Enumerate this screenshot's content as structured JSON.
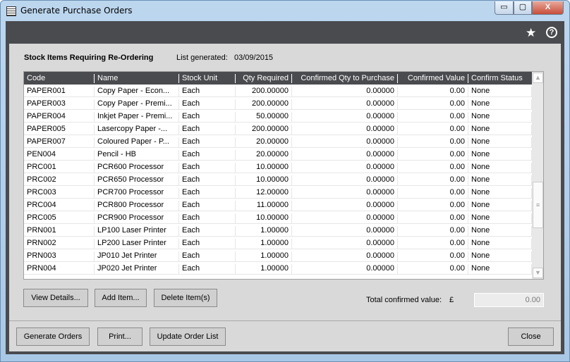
{
  "window": {
    "title": "Generate Purchase Orders",
    "min": "▭",
    "max": "▢",
    "close": "X"
  },
  "header": {
    "star_icon": "★",
    "help_icon": "?"
  },
  "section": {
    "title": "Stock Items Requiring Re-Ordering",
    "list_generated_label": "List generated:",
    "list_generated_date": "03/09/2015"
  },
  "grid": {
    "columns": [
      "Code",
      "Name",
      "Stock Unit",
      "Qty Required",
      "Confirmed Qty to Purchase",
      "Confirmed Value",
      "Confirm Status"
    ],
    "rows": [
      [
        "PAPER001",
        "Copy Paper - Econ...",
        "Each",
        "200.00000",
        "0.00000",
        "0.00",
        "None"
      ],
      [
        "PAPER003",
        "Copy Paper - Premi...",
        "Each",
        "200.00000",
        "0.00000",
        "0.00",
        "None"
      ],
      [
        "PAPER004",
        "Inkjet Paper - Premi...",
        "Each",
        "50.00000",
        "0.00000",
        "0.00",
        "None"
      ],
      [
        "PAPER005",
        "Lasercopy Paper -...",
        "Each",
        "200.00000",
        "0.00000",
        "0.00",
        "None"
      ],
      [
        "PAPER007",
        "Coloured Paper - P...",
        "Each",
        "20.00000",
        "0.00000",
        "0.00",
        "None"
      ],
      [
        "PEN004",
        "Pencil - HB",
        "Each",
        "20.00000",
        "0.00000",
        "0.00",
        "None"
      ],
      [
        "PRC001",
        "PCR600 Processor",
        "Each",
        "10.00000",
        "0.00000",
        "0.00",
        "None"
      ],
      [
        "PRC002",
        "PCR650 Processor",
        "Each",
        "10.00000",
        "0.00000",
        "0.00",
        "None"
      ],
      [
        "PRC003",
        "PCR700 Processor",
        "Each",
        "12.00000",
        "0.00000",
        "0.00",
        "None"
      ],
      [
        "PRC004",
        "PCR800 Processor",
        "Each",
        "11.00000",
        "0.00000",
        "0.00",
        "None"
      ],
      [
        "PRC005",
        "PCR900 Processor",
        "Each",
        "10.00000",
        "0.00000",
        "0.00",
        "None"
      ],
      [
        "PRN001",
        "LP100 Laser Printer",
        "Each",
        "1.00000",
        "0.00000",
        "0.00",
        "None"
      ],
      [
        "PRN002",
        "LP200 Laser Printer",
        "Each",
        "1.00000",
        "0.00000",
        "0.00",
        "None"
      ],
      [
        "PRN003",
        "JP010 Jet Printer",
        "Each",
        "1.00000",
        "0.00000",
        "0.00",
        "None"
      ],
      [
        "PRN004",
        "JP020 Jet Printer",
        "Each",
        "1.00000",
        "0.00000",
        "0.00",
        "None"
      ]
    ]
  },
  "buttons": {
    "view_details": "View Details...",
    "add_item": "Add Item...",
    "delete_items": "Delete Item(s)",
    "generate_orders": "Generate Orders",
    "print": "Print...",
    "update_order_list": "Update Order List",
    "close": "Close"
  },
  "total": {
    "label": "Total confirmed value:",
    "currency": "£",
    "value": "0.00"
  }
}
